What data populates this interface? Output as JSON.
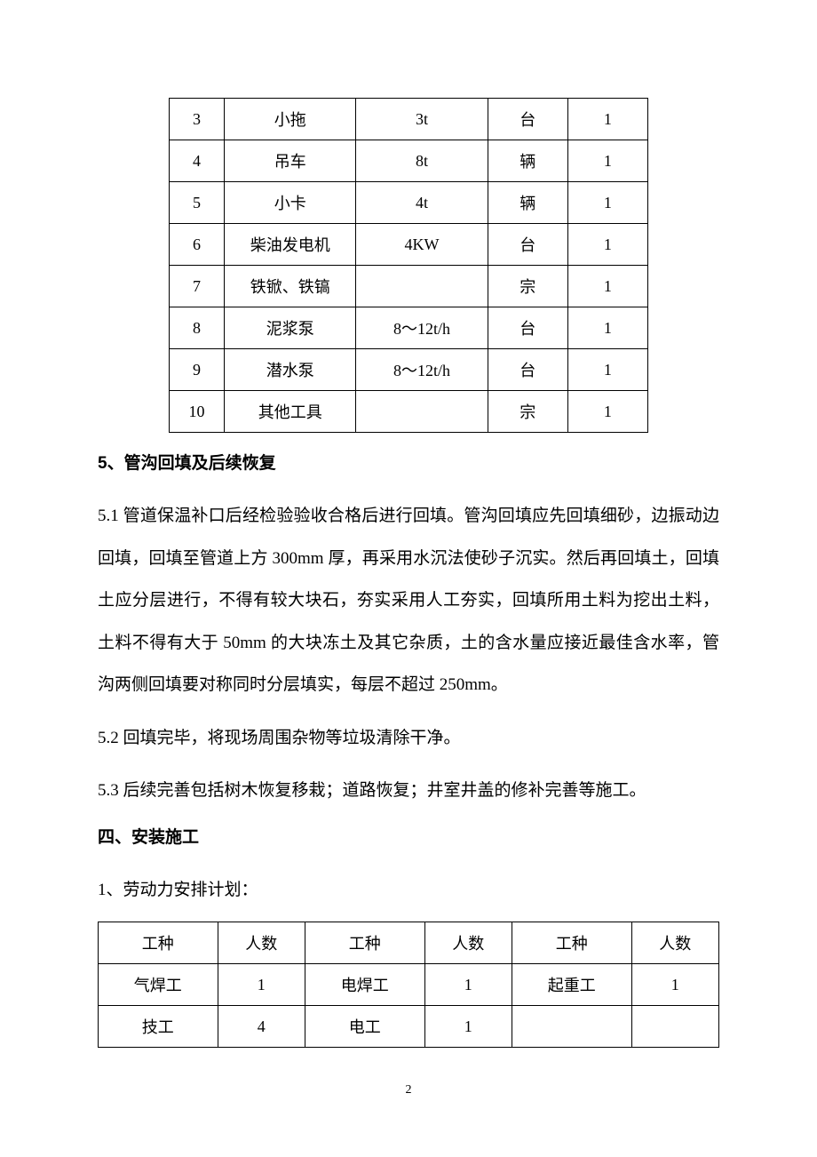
{
  "equipment_table": {
    "rows": [
      {
        "num": "3",
        "name": "小拖",
        "spec": "3t",
        "unit": "台",
        "qty": "1"
      },
      {
        "num": "4",
        "name": "吊车",
        "spec": "8t",
        "unit": "辆",
        "qty": "1"
      },
      {
        "num": "5",
        "name": "小卡",
        "spec": "4t",
        "unit": "辆",
        "qty": "1"
      },
      {
        "num": "6",
        "name": "柴油发电机",
        "spec": "4KW",
        "unit": "台",
        "qty": "1"
      },
      {
        "num": "7",
        "name": "铁锨、铁镐",
        "spec": "",
        "unit": "宗",
        "qty": "1"
      },
      {
        "num": "8",
        "name": "泥浆泵",
        "spec": "8～12t/h",
        "unit": "台",
        "qty": "1"
      },
      {
        "num": "9",
        "name": "潜水泵",
        "spec": "8～12t/h",
        "unit": "台",
        "qty": "1"
      },
      {
        "num": "10",
        "name": "其他工具",
        "spec": "",
        "unit": "宗",
        "qty": "1"
      }
    ]
  },
  "section5": {
    "heading": "5、管沟回填及后续恢复",
    "para_5_1": "5.1 管道保温补口后经检验验收合格后进行回填。管沟回填应先回填细砂，边振动边回填，回填至管道上方 300mm 厚，再采用水沉法使砂子沉实。然后再回填土，回填土应分层进行，不得有较大块石，夯实采用人工夯实，回填所用土料为挖出土料，土料不得有大于 50mm 的大块冻土及其它杂质，土的含水量应接近最佳含水率，管沟两侧回填要对称同时分层填实，每层不超过 250mm。",
    "para_5_2": "5.2 回填完毕，将现场周围杂物等垃圾清除干净。",
    "para_5_3": "5.3 后续完善包括树木恢复移栽；道路恢复；井室井盖的修补完善等施工。"
  },
  "section4": {
    "heading": "四、安装施工",
    "sub_heading": "1、劳动力安排计划：",
    "labor_table": {
      "header": [
        "工种",
        "人数",
        "工种",
        "人数",
        "工种",
        "人数"
      ],
      "rows": [
        [
          "气焊工",
          "1",
          "电焊工",
          "1",
          "起重工",
          "1"
        ],
        [
          "技工",
          "4",
          "电工",
          "1",
          "",
          ""
        ]
      ]
    }
  },
  "page_number": "2"
}
